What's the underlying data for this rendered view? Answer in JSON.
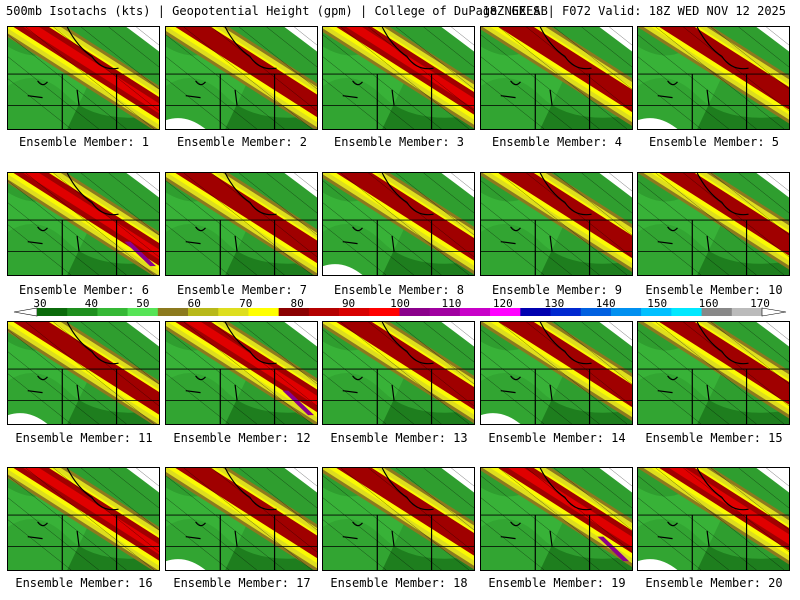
{
  "header": {
    "left": "500mb Isotachs (kts) | Geopotential Height (gpm) | College of DuPage NEXLAB",
    "right": "18Z GEFS | F072 Valid: 18Z WED NOV 12 2025"
  },
  "members": [
    {
      "label": "Ensemble Member: 1",
      "max_kts": 100
    },
    {
      "label": "Ensemble Member: 2",
      "max_kts": 90
    },
    {
      "label": "Ensemble Member: 3",
      "max_kts": 100
    },
    {
      "label": "Ensemble Member: 4",
      "max_kts": 90
    },
    {
      "label": "Ensemble Member: 5",
      "max_kts": 90
    },
    {
      "label": "Ensemble Member: 6",
      "max_kts": 120
    },
    {
      "label": "Ensemble Member: 7",
      "max_kts": 90
    },
    {
      "label": "Ensemble Member: 8",
      "max_kts": 90
    },
    {
      "label": "Ensemble Member: 9",
      "max_kts": 90
    },
    {
      "label": "Ensemble Member: 10",
      "max_kts": 90
    },
    {
      "label": "Ensemble Member: 11",
      "max_kts": 90
    },
    {
      "label": "Ensemble Member: 12",
      "max_kts": 120
    },
    {
      "label": "Ensemble Member: 13",
      "max_kts": 90
    },
    {
      "label": "Ensemble Member: 14",
      "max_kts": 90
    },
    {
      "label": "Ensemble Member: 15",
      "max_kts": 90
    },
    {
      "label": "Ensemble Member: 16",
      "max_kts": 100
    },
    {
      "label": "Ensemble Member: 17",
      "max_kts": 90
    },
    {
      "label": "Ensemble Member: 18",
      "max_kts": 90
    },
    {
      "label": "Ensemble Member: 19",
      "max_kts": 120
    },
    {
      "label": "Ensemble Member: 20",
      "max_kts": 100
    }
  ],
  "colorbar": {
    "labels": [
      "30",
      "40",
      "50",
      "60",
      "70",
      "80",
      "90",
      "100",
      "110",
      "120",
      "130",
      "140",
      "150",
      "160",
      "170"
    ],
    "colors": [
      "#0b6a0b",
      "#1e8f1e",
      "#35b835",
      "#56e456",
      "#8c7a1e",
      "#b8b819",
      "#dede1e",
      "#ffff00",
      "#8b0000",
      "#b40000",
      "#d80000",
      "#ff0000",
      "#8b008b",
      "#a000a0",
      "#c800c8",
      "#ff00ff",
      "#0000b0",
      "#0028d0",
      "#0060e0",
      "#0090f0",
      "#00c0ff",
      "#00e8ff",
      "#888888",
      "#bbbbbb"
    ]
  }
}
